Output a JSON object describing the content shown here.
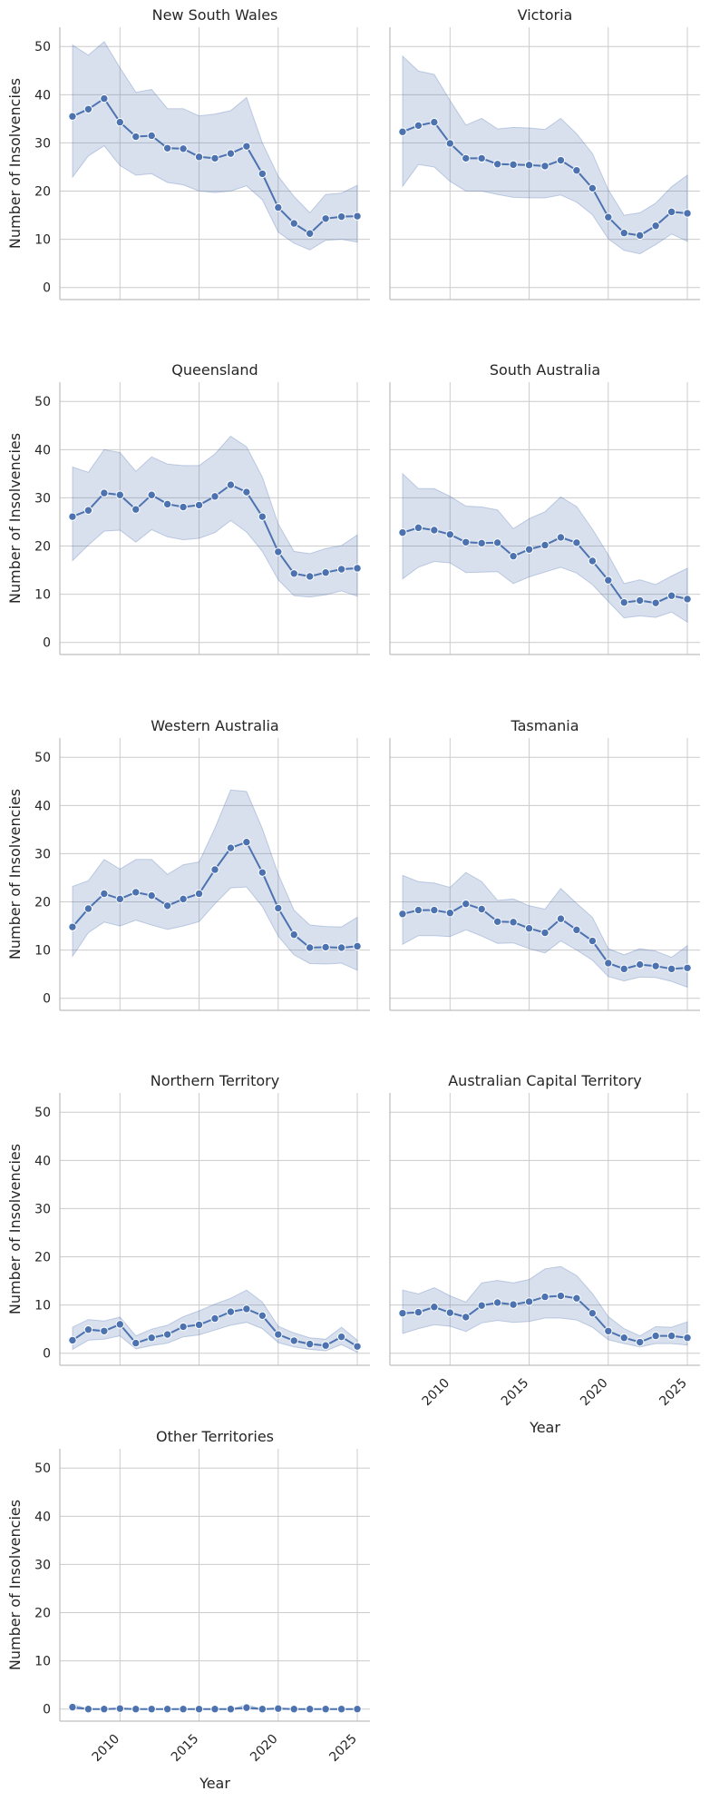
{
  "chart_data": {
    "type": "line",
    "layout": "facet-grid",
    "columns": 2,
    "xlabel": "Year",
    "ylabel": "Number of Insolvencies",
    "xlim": [
      2006.2,
      2025.8
    ],
    "ylim": [
      -2.5,
      54
    ],
    "xticks": [
      2010,
      2015,
      2020,
      2025
    ],
    "yticks": [
      0,
      10,
      20,
      30,
      40,
      50
    ],
    "x": [
      2007,
      2008,
      2009,
      2010,
      2011,
      2012,
      2013,
      2014,
      2015,
      2016,
      2017,
      2018,
      2019,
      2020,
      2021,
      2022,
      2023,
      2024,
      2025
    ],
    "grid": true,
    "colors": {
      "line": "#4c72b0",
      "band": "#4c72b0",
      "grid": "#cccccc",
      "axis": "#bfbfbf"
    },
    "panels": [
      {
        "title": "New South Wales",
        "values": [
          35.5,
          37.0,
          39.2,
          34.3,
          31.3,
          31.5,
          28.9,
          28.8,
          27.1,
          26.8,
          27.8,
          29.3,
          23.6,
          16.6,
          13.3,
          11.2,
          14.3,
          14.7,
          14.8
        ],
        "ci_low": [
          22.9,
          27.3,
          29.4,
          25.3,
          23.3,
          23.6,
          21.8,
          21.3,
          20.0,
          19.7,
          20.0,
          21.1,
          18.2,
          11.5,
          9.2,
          7.8,
          9.8,
          10.0,
          9.4
        ],
        "ci_high": [
          50.3,
          48.2,
          51.0,
          45.6,
          40.5,
          41.1,
          37.1,
          37.1,
          35.6,
          36.0,
          36.7,
          39.4,
          30.0,
          23.1,
          18.9,
          15.5,
          19.3,
          19.6,
          21.2
        ]
      },
      {
        "title": "Victoria",
        "values": [
          32.3,
          33.6,
          34.3,
          29.9,
          26.8,
          26.8,
          25.6,
          25.5,
          25.4,
          25.2,
          26.4,
          24.3,
          20.6,
          14.6,
          11.3,
          10.8,
          12.8,
          15.7,
          15.4
        ],
        "ci_low": [
          21.0,
          25.5,
          25.0,
          22.0,
          20.0,
          20.0,
          19.3,
          18.7,
          18.6,
          18.6,
          19.2,
          17.7,
          15.1,
          10.1,
          7.7,
          7.0,
          8.9,
          11.1,
          9.6
        ],
        "ci_high": [
          48.0,
          44.9,
          44.2,
          38.8,
          33.7,
          35.1,
          32.9,
          33.2,
          33.1,
          32.8,
          35.1,
          31.9,
          27.8,
          20.3,
          15.0,
          15.5,
          17.5,
          20.9,
          23.3
        ]
      },
      {
        "title": "Queensland",
        "values": [
          26.1,
          27.4,
          31.0,
          30.6,
          27.6,
          30.6,
          28.7,
          28.1,
          28.5,
          30.3,
          32.7,
          31.2,
          26.1,
          18.8,
          14.3,
          13.7,
          14.5,
          15.2,
          15.4
        ],
        "ci_low": [
          17.0,
          20.2,
          23.1,
          23.3,
          20.8,
          23.4,
          21.9,
          21.3,
          21.6,
          22.8,
          25.3,
          22.9,
          18.9,
          13.0,
          9.7,
          9.4,
          9.9,
          10.7,
          9.6
        ],
        "ci_high": [
          36.4,
          35.3,
          40.0,
          39.4,
          35.5,
          38.5,
          37.0,
          36.7,
          36.7,
          39.1,
          42.8,
          40.6,
          34.3,
          24.6,
          18.9,
          18.4,
          19.5,
          20.1,
          22.3
        ]
      },
      {
        "title": "South Australia",
        "values": [
          22.8,
          23.8,
          23.3,
          22.4,
          20.8,
          20.6,
          20.7,
          17.9,
          19.3,
          20.2,
          21.8,
          20.7,
          16.9,
          12.9,
          8.3,
          8.7,
          8.2,
          9.7,
          9.0
        ],
        "ci_low": [
          13.2,
          15.6,
          16.8,
          16.5,
          14.5,
          14.6,
          14.7,
          12.2,
          13.6,
          14.6,
          15.6,
          14.4,
          12.0,
          8.5,
          5.1,
          5.5,
          5.2,
          6.3,
          4.2
        ],
        "ci_high": [
          35.0,
          31.9,
          31.9,
          30.3,
          28.3,
          28.1,
          27.5,
          23.6,
          25.7,
          27.1,
          30.2,
          28.2,
          23.5,
          18.2,
          12.2,
          13.0,
          12.0,
          13.8,
          15.4
        ]
      },
      {
        "title": "Western Australia",
        "values": [
          14.8,
          18.6,
          21.7,
          20.6,
          22.0,
          21.3,
          19.2,
          20.6,
          21.7,
          26.7,
          31.2,
          32.4,
          26.1,
          18.7,
          13.2,
          10.5,
          10.6,
          10.5,
          10.8
        ],
        "ci_low": [
          8.7,
          13.6,
          15.8,
          15.0,
          16.2,
          15.2,
          14.3,
          15.0,
          15.9,
          19.6,
          22.9,
          23.1,
          19.0,
          12.9,
          9.0,
          7.2,
          7.1,
          7.3,
          5.8
        ],
        "ci_high": [
          23.2,
          24.4,
          28.8,
          26.8,
          28.8,
          28.8,
          25.7,
          27.7,
          28.3,
          35.3,
          43.2,
          42.9,
          35.2,
          25.8,
          18.3,
          15.2,
          14.9,
          14.8,
          16.8
        ]
      },
      {
        "title": "Tasmania",
        "values": [
          17.5,
          18.3,
          18.3,
          17.7,
          19.6,
          18.5,
          15.9,
          15.8,
          14.5,
          13.6,
          16.5,
          14.2,
          11.9,
          7.3,
          6.1,
          7.0,
          6.7,
          6.1,
          6.3
        ],
        "ci_low": [
          11.2,
          13.0,
          13.0,
          12.8,
          14.2,
          12.9,
          11.4,
          11.5,
          10.3,
          9.4,
          11.9,
          10.0,
          7.9,
          4.5,
          3.6,
          4.4,
          4.3,
          3.5,
          2.3
        ],
        "ci_high": [
          25.5,
          24.2,
          23.9,
          23.0,
          26.1,
          24.2,
          20.3,
          20.6,
          19.2,
          18.5,
          22.8,
          19.7,
          16.8,
          10.3,
          9.0,
          10.3,
          9.8,
          8.5,
          10.9
        ]
      },
      {
        "title": "Northern Territory",
        "values": [
          2.7,
          4.9,
          4.6,
          6.0,
          2.1,
          3.2,
          3.9,
          5.5,
          5.9,
          7.2,
          8.6,
          9.2,
          7.8,
          3.9,
          2.6,
          1.9,
          1.6,
          3.4,
          1.4
        ],
        "ci_low": [
          0.8,
          2.7,
          2.9,
          3.6,
          0.9,
          1.6,
          2.1,
          3.4,
          3.8,
          4.8,
          5.8,
          6.4,
          5.1,
          2.2,
          1.3,
          0.8,
          0.5,
          1.8,
          0.2
        ],
        "ci_high": [
          5.4,
          7.0,
          6.7,
          7.5,
          3.6,
          5.0,
          5.8,
          7.6,
          8.8,
          10.2,
          11.4,
          13.1,
          10.6,
          5.6,
          4.2,
          3.2,
          2.9,
          5.4,
          2.7
        ]
      },
      {
        "title": "Australian Capital Territory",
        "values": [
          8.3,
          8.5,
          9.6,
          8.4,
          7.5,
          9.9,
          10.5,
          10.1,
          10.7,
          11.7,
          11.9,
          11.4,
          8.3,
          4.6,
          3.2,
          2.3,
          3.6,
          3.6,
          3.2
        ],
        "ci_low": [
          4.1,
          5.1,
          5.9,
          5.6,
          4.5,
          6.3,
          6.8,
          6.4,
          6.6,
          7.3,
          7.3,
          6.9,
          5.4,
          2.8,
          2.0,
          1.3,
          2.0,
          2.0,
          1.7
        ],
        "ci_high": [
          13.1,
          12.3,
          13.6,
          11.9,
          10.6,
          14.6,
          15.1,
          14.6,
          15.3,
          17.5,
          18.0,
          16.1,
          12.4,
          7.6,
          5.1,
          3.6,
          5.5,
          5.4,
          6.5
        ]
      },
      {
        "title": "Other Territories",
        "values": [
          0.4,
          0.0,
          0.0,
          0.1,
          0.0,
          0.0,
          0.0,
          0.0,
          0.0,
          0.0,
          0.0,
          0.3,
          0.0,
          0.1,
          0.0,
          0.0,
          0.0,
          0.0,
          0.0
        ],
        "ci_low": [
          0.0,
          0.0,
          0.0,
          0.0,
          0.0,
          0.0,
          0.0,
          0.0,
          0.0,
          0.0,
          0.0,
          0.0,
          0.0,
          0.0,
          0.0,
          0.0,
          0.0,
          0.0,
          0.0
        ],
        "ci_high": [
          1.0,
          0.0,
          0.0,
          0.3,
          0.0,
          0.0,
          0.0,
          0.0,
          0.0,
          0.0,
          0.0,
          0.9,
          0.0,
          0.3,
          0.0,
          0.0,
          0.0,
          0.0,
          0.0
        ]
      }
    ]
  }
}
